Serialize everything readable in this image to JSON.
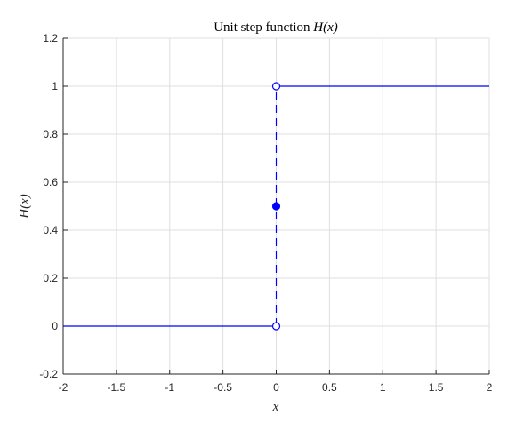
{
  "chart_data": {
    "type": "line",
    "title": "Unit step function H(x)",
    "xlabel": "x",
    "ylabel": "H(x)",
    "xlim": [
      -2,
      2
    ],
    "ylim": [
      -0.2,
      1.2
    ],
    "xticks": [
      -2,
      -1.5,
      -1,
      -0.5,
      0,
      0.5,
      1,
      1.5,
      2
    ],
    "xtick_labels": [
      "-2",
      "-1.5",
      "-1",
      "-0.5",
      "0",
      "0.5",
      "1",
      "1.5",
      "2"
    ],
    "yticks": [
      -0.2,
      0,
      0.2,
      0.4,
      0.6,
      0.8,
      1,
      1.2
    ],
    "ytick_labels": [
      "-0.2",
      "0",
      "0.2",
      "0.4",
      "0.6",
      "0.8",
      "1",
      "1.2"
    ],
    "grid": true,
    "series": [
      {
        "style": "solid",
        "x": [
          -2,
          0
        ],
        "y": [
          0,
          0
        ]
      },
      {
        "style": "solid",
        "x": [
          0,
          2
        ],
        "y": [
          1,
          1
        ]
      },
      {
        "style": "dashed",
        "x": [
          0,
          0
        ],
        "y": [
          0,
          1
        ]
      }
    ],
    "markers": [
      {
        "x": 0,
        "y": 0,
        "filled": false
      },
      {
        "x": 0,
        "y": 1,
        "filled": false
      },
      {
        "x": 0,
        "y": 0.5,
        "filled": true
      }
    ],
    "colors": {
      "line": "#0000ff",
      "axis": "#262626",
      "grid": "#dfdfdf"
    }
  }
}
